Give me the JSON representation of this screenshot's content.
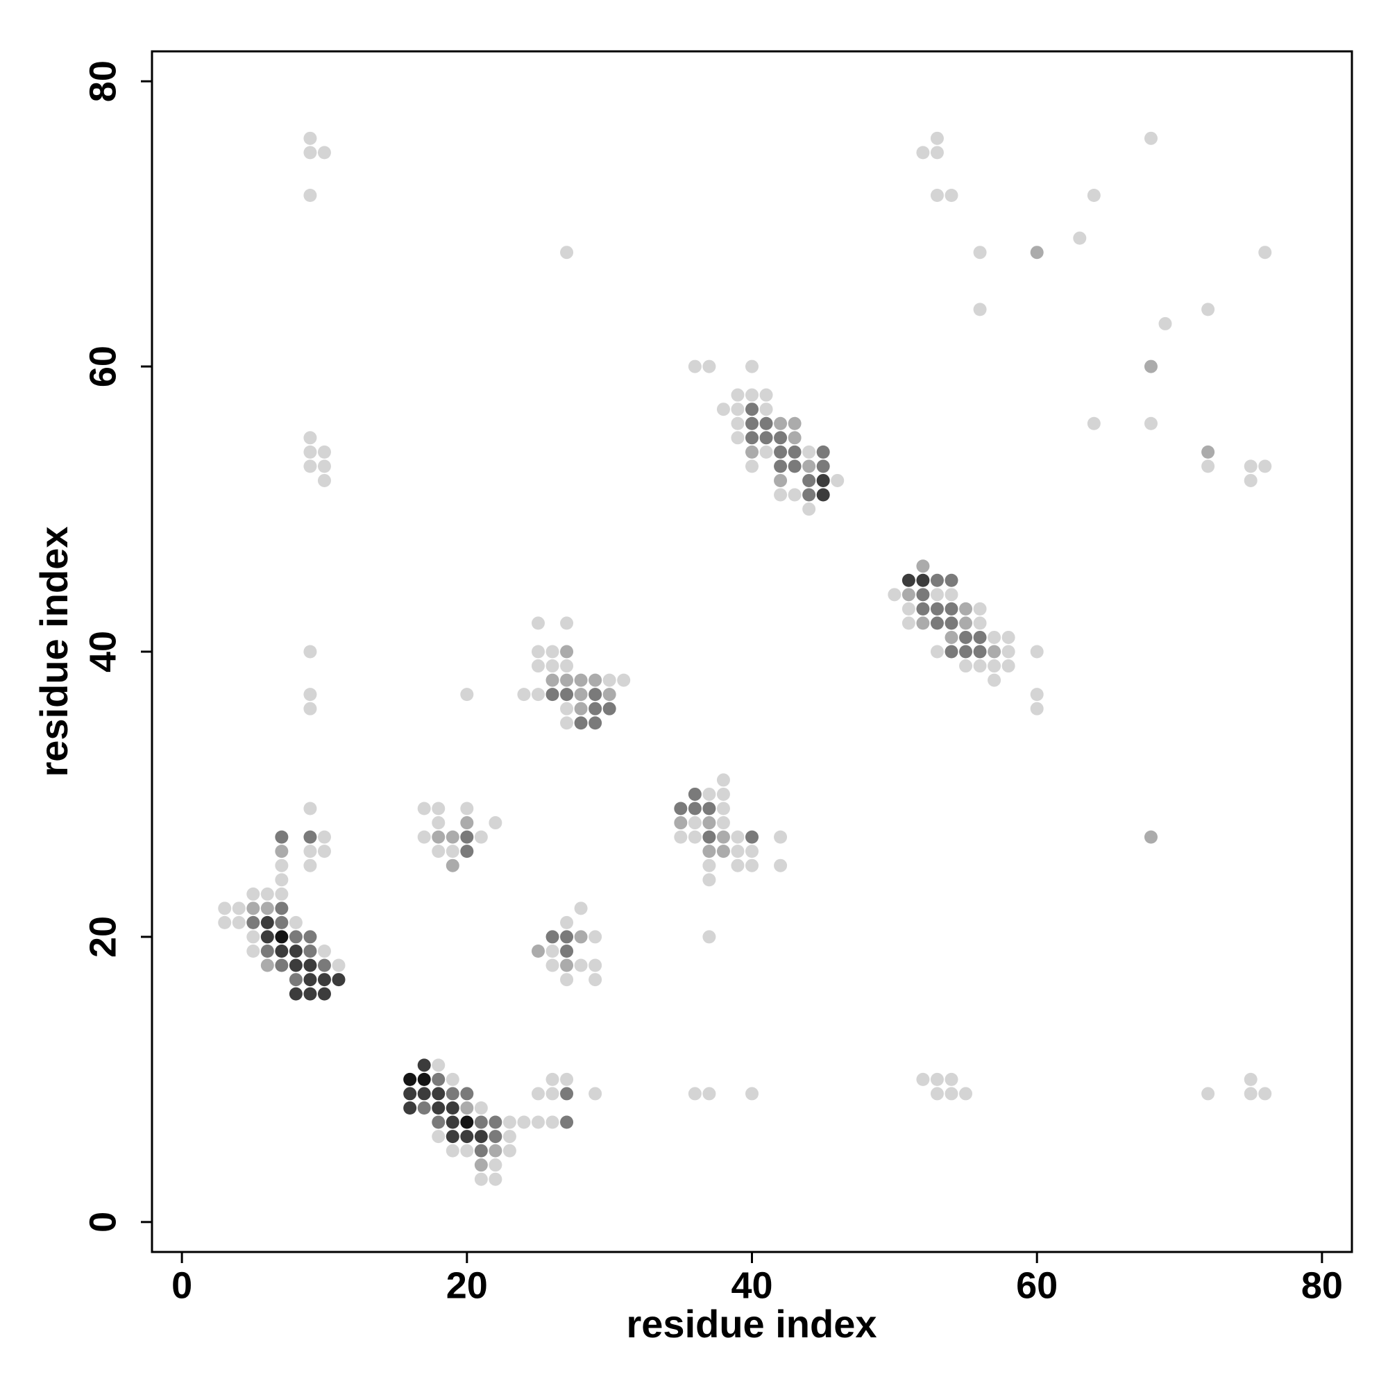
{
  "chart_data": {
    "type": "scatter",
    "xlabel": "residue index",
    "ylabel": "residue index",
    "xlim": [
      -2.1,
      82.1
    ],
    "ylim": [
      -2.1,
      82.1
    ],
    "xticks": [
      0,
      20,
      40,
      60,
      80
    ],
    "yticks": [
      0,
      20,
      40,
      60,
      80
    ],
    "series": [
      {
        "color": "#d4d4d4",
        "x": [
          9,
          9,
          10,
          9,
          27,
          53,
          52,
          53,
          53,
          54,
          68,
          64,
          63,
          56,
          76,
          56,
          72,
          69,
          64,
          68,
          72,
          75,
          76,
          75,
          9,
          9,
          10,
          9,
          10,
          10,
          9,
          9,
          9,
          9,
          36,
          37,
          40,
          39,
          40,
          41,
          38,
          39,
          41,
          39,
          39,
          41,
          44,
          40,
          46,
          42,
          43,
          44,
          50,
          53,
          54,
          51,
          56,
          51,
          56,
          57,
          58,
          53,
          58,
          60,
          55,
          56,
          57,
          58,
          57,
          60,
          60,
          25,
          27,
          25,
          26,
          25,
          26,
          27,
          30,
          31,
          24,
          25,
          20,
          27,
          27,
          38,
          37,
          38,
          38,
          36,
          38,
          35,
          36,
          39,
          42,
          39,
          40,
          37,
          39,
          40,
          42,
          37,
          37,
          17,
          18,
          20,
          18,
          22,
          17,
          21,
          18,
          19,
          10,
          9,
          10,
          7,
          9,
          7,
          5,
          6,
          7,
          3,
          4,
          3,
          4,
          8,
          5,
          5,
          10,
          11,
          28,
          27,
          29,
          26,
          26,
          28,
          29,
          27,
          29,
          18,
          19,
          26,
          27,
          52,
          53,
          54,
          75,
          25,
          26,
          29,
          36,
          37,
          40,
          53,
          54,
          55,
          72,
          75,
          76,
          21,
          23,
          24,
          25,
          26,
          18,
          23,
          19,
          20,
          23,
          22,
          21,
          22
        ],
        "values": [
          76,
          75,
          75,
          72,
          68,
          76,
          75,
          75,
          72,
          72,
          76,
          72,
          69,
          68,
          68,
          64,
          64,
          63,
          56,
          56,
          53,
          53,
          53,
          52,
          55,
          54,
          54,
          53,
          53,
          52,
          40,
          37,
          36,
          29,
          60,
          60,
          60,
          58,
          58,
          58,
          57,
          57,
          57,
          56,
          55,
          54,
          54,
          53,
          52,
          51,
          51,
          50,
          44,
          44,
          44,
          43,
          43,
          42,
          42,
          41,
          41,
          40,
          40,
          40,
          39,
          39,
          39,
          39,
          38,
          37,
          36,
          42,
          42,
          40,
          40,
          39,
          39,
          39,
          38,
          38,
          37,
          37,
          37,
          36,
          35,
          31,
          30,
          30,
          29,
          28,
          28,
          27,
          27,
          27,
          27,
          26,
          26,
          25,
          25,
          25,
          25,
          24,
          20,
          29,
          29,
          29,
          28,
          28,
          27,
          27,
          26,
          26,
          27,
          26,
          26,
          25,
          25,
          24,
          23,
          23,
          23,
          22,
          22,
          21,
          21,
          21,
          20,
          19,
          19,
          18,
          22,
          21,
          20,
          19,
          18,
          18,
          18,
          17,
          17,
          11,
          10,
          10,
          10,
          10,
          10,
          10,
          10,
          9,
          9,
          9,
          9,
          9,
          9,
          9,
          9,
          9,
          9,
          9,
          9,
          8,
          7,
          7,
          7,
          7,
          6,
          6,
          5,
          5,
          5,
          4,
          3,
          3
        ]
      },
      {
        "color": "#ababab",
        "x": [
          7,
          5,
          6,
          6,
          25,
          28,
          27,
          20,
          21,
          22,
          18,
          19,
          20,
          19,
          35,
          37,
          37,
          38,
          38,
          27,
          26,
          27,
          28,
          29,
          28,
          30,
          28,
          42,
          43,
          43,
          40,
          44,
          42,
          52,
          51,
          55,
          52,
          55,
          54,
          57,
          68,
          68,
          60,
          72
        ],
        "values": [
          26,
          22,
          22,
          18,
          19,
          20,
          18,
          8,
          4,
          5,
          27,
          27,
          28,
          25,
          28,
          28,
          26,
          26,
          27,
          40,
          38,
          38,
          38,
          38,
          37,
          37,
          36,
          56,
          56,
          55,
          54,
          53,
          52,
          46,
          44,
          43,
          42,
          42,
          41,
          40,
          60,
          27,
          68,
          54
        ]
      },
      {
        "color": "#7a7a7a",
        "x": [
          7,
          9,
          7,
          5,
          7,
          8,
          9,
          6,
          9,
          7,
          10,
          8,
          18,
          19,
          20,
          27,
          17,
          18,
          21,
          22,
          27,
          22,
          21,
          20,
          20,
          26,
          27,
          27,
          36,
          35,
          36,
          37,
          37,
          40,
          26,
          27,
          29,
          29,
          30,
          28,
          29,
          40,
          40,
          41,
          40,
          41,
          42,
          42,
          43,
          45,
          42,
          43,
          45,
          44,
          44,
          53,
          54,
          52,
          52,
          53,
          54,
          53,
          54,
          55,
          56,
          54,
          55,
          56
        ],
        "values": [
          27,
          27,
          22,
          21,
          21,
          20,
          20,
          19,
          19,
          18,
          18,
          17,
          10,
          9,
          9,
          9,
          8,
          7,
          7,
          7,
          7,
          6,
          5,
          27,
          26,
          20,
          20,
          19,
          30,
          29,
          29,
          29,
          27,
          27,
          37,
          37,
          37,
          36,
          36,
          35,
          35,
          56,
          57,
          56,
          55,
          55,
          55,
          54,
          54,
          54,
          53,
          53,
          53,
          52,
          51,
          45,
          45,
          44,
          43,
          43,
          43,
          42,
          42,
          41,
          41,
          40,
          40,
          40
        ]
      },
      {
        "color": "#3c3c3c",
        "x": [
          6,
          7,
          8,
          8,
          9,
          9,
          10,
          11,
          8,
          9,
          10,
          6,
          17,
          16,
          17,
          18,
          16,
          18,
          19,
          19,
          19,
          20,
          21,
          45,
          45,
          51,
          52
        ],
        "values": [
          20,
          19,
          19,
          18,
          18,
          17,
          17,
          17,
          16,
          16,
          16,
          21,
          11,
          9,
          9,
          9,
          8,
          8,
          8,
          7,
          6,
          6,
          6,
          52,
          51,
          45,
          45
        ]
      },
      {
        "color": "#141414",
        "x": [
          7,
          20,
          16,
          17
        ],
        "values": [
          20,
          7,
          10,
          10
        ]
      }
    ]
  }
}
